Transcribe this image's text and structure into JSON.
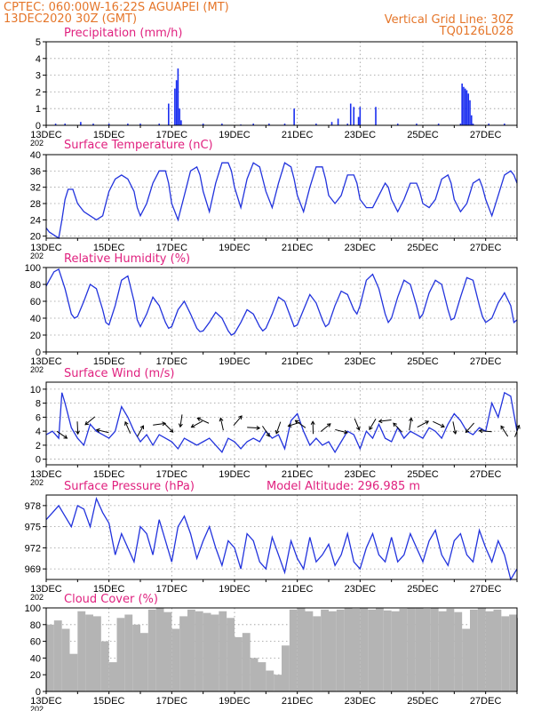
{
  "header": {
    "line1_left": "CPTEC:   060:00W-16:22S   AGUAPEI (MT)",
    "line2_left": "13DEC2020 30Z (GMT)",
    "line1_right": "Vertical Grid Line: 30Z",
    "line2_right": "TQ0126L028"
  },
  "x_axis": {
    "labels": [
      "13DEC",
      "15DEC",
      "17DEC",
      "19DEC",
      "21DEC",
      "23DEC",
      "25DEC",
      "27DEC"
    ],
    "year_label": "202",
    "day_start": 13,
    "day_end": 28
  },
  "panels": [
    {
      "id": "precip",
      "title": "Precipitation (mm/h)",
      "yticks": [
        "0",
        "1",
        "2",
        "3",
        "4",
        "5"
      ]
    },
    {
      "id": "temp",
      "title": "Surface Temperature (nC)",
      "yticks": [
        "20",
        "24",
        "28",
        "32",
        "36",
        "40"
      ]
    },
    {
      "id": "rh",
      "title": "Relative Humidity (%)",
      "yticks": [
        "0",
        "20",
        "40",
        "60",
        "80",
        "100"
      ]
    },
    {
      "id": "wind",
      "title": "Surface Wind (m/s)",
      "yticks": [
        "0",
        "2",
        "4",
        "6",
        "8",
        "10"
      ]
    },
    {
      "id": "pres",
      "title": "Surface Pressure (hPa)",
      "extra": "Model Altitude: 296.985 m",
      "yticks": [
        "969",
        "972",
        "975",
        "978"
      ]
    },
    {
      "id": "cloud",
      "title": "Cloud Cover (%)",
      "yticks": [
        "0",
        "20",
        "40",
        "60",
        "80",
        "100"
      ]
    }
  ],
  "colors": {
    "header": "#e5762a",
    "title": "#e0217f",
    "line": "#2233dd",
    "bar": "#1a2ef0",
    "cloud": "#b4b4b4"
  },
  "chart_data": [
    {
      "type": "bar",
      "title": "Precipitation (mm/h)",
      "ylim": [
        0,
        5
      ],
      "x": [
        13.3,
        13.6,
        14.1,
        14.5,
        15.0,
        15.6,
        16.0,
        16.6,
        16.9,
        17.1,
        17.15,
        17.2,
        17.25,
        17.3,
        18.0,
        18.6,
        19.2,
        19.6,
        20.1,
        20.6,
        20.9,
        21.6,
        22.1,
        22.3,
        22.6,
        22.7,
        22.8,
        22.95,
        23.0,
        23.5,
        24.2,
        24.8,
        25.5,
        26.2,
        26.25,
        26.3,
        26.35,
        26.4,
        26.45,
        26.5,
        26.55,
        26.6,
        27.1,
        27.6
      ],
      "y": [
        0.1,
        0.1,
        0.2,
        0.1,
        0.1,
        0.1,
        0.1,
        0.1,
        1.3,
        2.2,
        2.7,
        3.4,
        1.0,
        0.3,
        0.1,
        0.1,
        0.05,
        0.1,
        0.1,
        0.1,
        1.0,
        0.1,
        0.2,
        0.4,
        0.1,
        1.3,
        1.1,
        0.5,
        1.1,
        1.1,
        0.1,
        0.1,
        0.1,
        0.1,
        2.5,
        2.3,
        2.2,
        2.1,
        1.9,
        1.5,
        0.6,
        0.1,
        0.1,
        0.1
      ]
    },
    {
      "type": "line",
      "title": "Surface Temperature (nC)",
      "ylim": [
        20,
        40
      ],
      "x": [
        13.0,
        13.1,
        13.2,
        13.3,
        13.4,
        13.5,
        13.6,
        13.7,
        13.85,
        14.0,
        14.2,
        14.4,
        14.6,
        14.8,
        14.9,
        15.0,
        15.2,
        15.4,
        15.6,
        15.8,
        15.9,
        16.0,
        16.2,
        16.4,
        16.6,
        16.8,
        16.9,
        17.0,
        17.2,
        17.4,
        17.6,
        17.8,
        17.9,
        18.0,
        18.2,
        18.4,
        18.6,
        18.8,
        18.9,
        19.0,
        19.2,
        19.4,
        19.6,
        19.8,
        19.9,
        20.0,
        20.2,
        20.4,
        20.6,
        20.8,
        20.9,
        21.0,
        21.2,
        21.4,
        21.6,
        21.8,
        21.9,
        22.0,
        22.2,
        22.4,
        22.6,
        22.8,
        22.9,
        23.0,
        23.2,
        23.4,
        23.6,
        23.8,
        23.9,
        24.0,
        24.2,
        24.4,
        24.6,
        24.8,
        24.9,
        25.0,
        25.2,
        25.4,
        25.6,
        25.8,
        25.9,
        26.0,
        26.2,
        26.4,
        26.6,
        26.8,
        26.9,
        27.0,
        27.2,
        27.4,
        27.6,
        27.8,
        27.9,
        28.0
      ],
      "y": [
        22,
        21,
        20.5,
        20,
        19.5,
        24,
        29,
        31.5,
        31.5,
        28,
        26,
        25,
        24,
        25,
        28,
        31,
        34,
        35,
        34,
        31,
        27,
        25,
        28,
        33,
        36,
        36,
        33,
        28,
        24,
        30,
        36,
        37,
        35,
        31,
        26,
        33,
        38,
        38,
        36,
        32,
        27,
        34,
        38,
        37,
        34,
        31,
        27,
        33,
        38,
        37,
        34,
        30,
        26,
        32,
        37,
        37,
        34,
        30,
        28,
        30,
        35,
        35,
        33,
        29,
        27,
        27,
        30,
        33,
        32,
        29,
        26,
        29,
        33,
        33,
        31,
        28,
        27,
        29,
        34,
        35,
        33,
        29,
        26,
        28,
        33,
        34,
        32,
        29,
        25,
        30,
        35,
        36,
        35,
        33
      ]
    },
    {
      "type": "line",
      "title": "Relative Humidity (%)",
      "ylim": [
        0,
        100
      ],
      "x": [
        13.0,
        13.1,
        13.25,
        13.4,
        13.6,
        13.8,
        13.9,
        14.0,
        14.2,
        14.4,
        14.6,
        14.8,
        14.9,
        15.0,
        15.2,
        15.4,
        15.6,
        15.8,
        15.9,
        16.0,
        16.2,
        16.4,
        16.6,
        16.8,
        16.9,
        17.0,
        17.2,
        17.4,
        17.6,
        17.8,
        17.9,
        18.0,
        18.2,
        18.4,
        18.6,
        18.8,
        18.9,
        19.0,
        19.2,
        19.4,
        19.6,
        19.8,
        19.9,
        20.0,
        20.2,
        20.4,
        20.6,
        20.8,
        20.9,
        21.0,
        21.2,
        21.4,
        21.6,
        21.8,
        21.9,
        22.0,
        22.2,
        22.4,
        22.6,
        22.8,
        22.9,
        23.0,
        23.2,
        23.4,
        23.6,
        23.8,
        23.9,
        24.0,
        24.2,
        24.4,
        24.6,
        24.8,
        24.9,
        25.0,
        25.2,
        25.4,
        25.6,
        25.8,
        25.9,
        26.0,
        26.2,
        26.4,
        26.6,
        26.8,
        26.9,
        27.0,
        27.2,
        27.4,
        27.6,
        27.8,
        27.9,
        28.0
      ],
      "y": [
        78,
        85,
        95,
        98,
        75,
        45,
        40,
        42,
        60,
        80,
        75,
        50,
        35,
        32,
        55,
        85,
        90,
        60,
        38,
        30,
        45,
        65,
        55,
        35,
        28,
        30,
        50,
        60,
        45,
        28,
        24,
        25,
        35,
        47,
        40,
        25,
        20,
        22,
        35,
        50,
        45,
        30,
        25,
        28,
        45,
        65,
        60,
        40,
        30,
        32,
        50,
        68,
        58,
        38,
        30,
        33,
        55,
        72,
        68,
        50,
        45,
        55,
        85,
        92,
        75,
        45,
        35,
        40,
        65,
        85,
        80,
        55,
        40,
        45,
        70,
        85,
        80,
        50,
        38,
        40,
        65,
        88,
        85,
        55,
        42,
        35,
        40,
        58,
        70,
        55,
        35,
        38
      ]
    },
    {
      "type": "line",
      "title": "Surface Wind (m/s)",
      "ylim": [
        0,
        10
      ],
      "x": [
        13.0,
        13.2,
        13.4,
        13.5,
        13.6,
        13.8,
        14.0,
        14.2,
        14.4,
        14.6,
        14.8,
        15.0,
        15.2,
        15.4,
        15.6,
        15.8,
        16.0,
        16.2,
        16.4,
        16.6,
        16.8,
        17.0,
        17.2,
        17.4,
        17.6,
        17.8,
        18.0,
        18.2,
        18.4,
        18.6,
        18.8,
        19.0,
        19.2,
        19.4,
        19.6,
        19.8,
        20.0,
        20.2,
        20.4,
        20.6,
        20.8,
        21.0,
        21.2,
        21.4,
        21.6,
        21.8,
        22.0,
        22.2,
        22.4,
        22.6,
        22.8,
        23.0,
        23.2,
        23.4,
        23.6,
        23.8,
        24.0,
        24.2,
        24.4,
        24.6,
        24.8,
        25.0,
        25.2,
        25.4,
        25.6,
        25.8,
        26.0,
        26.2,
        26.4,
        26.6,
        26.8,
        27.0,
        27.2,
        27.4,
        27.6,
        27.8,
        28.0
      ],
      "y": [
        3.5,
        4.0,
        3.0,
        9.5,
        8.0,
        4.5,
        3.0,
        2.0,
        5.0,
        4.0,
        3.5,
        3.0,
        4.0,
        7.5,
        6.0,
        4.0,
        2.5,
        3.5,
        2.0,
        3.5,
        3.0,
        2.5,
        1.5,
        3.0,
        2.5,
        2.0,
        2.5,
        3.0,
        2.0,
        1.0,
        3.0,
        2.5,
        1.5,
        2.5,
        3.0,
        2.5,
        4.0,
        3.0,
        3.5,
        1.5,
        5.5,
        6.5,
        4.0,
        2.0,
        3.0,
        2.0,
        2.5,
        1.0,
        2.5,
        4.0,
        3.5,
        1.5,
        4.0,
        3.0,
        5.0,
        3.0,
        2.5,
        4.5,
        3.0,
        4.0,
        3.5,
        3.0,
        4.5,
        4.0,
        3.0,
        5.0,
        6.5,
        5.5,
        4.0,
        3.5,
        4.5,
        4.0,
        8.0,
        6.0,
        9.5,
        9.0,
        4.0
      ]
    },
    {
      "type": "line",
      "title": "Surface Pressure (hPa)",
      "ylim": [
        967.5,
        979.5
      ],
      "x": [
        13.0,
        13.2,
        13.4,
        13.6,
        13.8,
        14.0,
        14.2,
        14.4,
        14.6,
        14.8,
        15.0,
        15.2,
        15.4,
        15.6,
        15.8,
        16.0,
        16.2,
        16.4,
        16.6,
        16.8,
        17.0,
        17.2,
        17.4,
        17.6,
        17.8,
        18.0,
        18.2,
        18.4,
        18.6,
        18.8,
        19.0,
        19.2,
        19.4,
        19.6,
        19.8,
        20.0,
        20.2,
        20.4,
        20.6,
        20.8,
        21.0,
        21.2,
        21.4,
        21.6,
        21.8,
        22.0,
        22.2,
        22.4,
        22.6,
        22.8,
        23.0,
        23.2,
        23.4,
        23.6,
        23.8,
        24.0,
        24.2,
        24.4,
        24.6,
        24.8,
        25.0,
        25.2,
        25.4,
        25.6,
        25.8,
        26.0,
        26.2,
        26.4,
        26.6,
        26.8,
        27.0,
        27.2,
        27.4,
        27.6,
        27.8,
        28.0
      ],
      "y": [
        976,
        977,
        978,
        976.5,
        975,
        978,
        977.5,
        975,
        979,
        977,
        975.5,
        971,
        974,
        972,
        970,
        975,
        974,
        971,
        976,
        973,
        970,
        975,
        976.5,
        974,
        970.5,
        973,
        975,
        972,
        969.5,
        973,
        972,
        969,
        974,
        973,
        970,
        969,
        973.5,
        971,
        968.5,
        973,
        970.5,
        969,
        973.5,
        970,
        971,
        972.5,
        969.5,
        971,
        974,
        970,
        969,
        972,
        974,
        971,
        970,
        973.5,
        970,
        971,
        974,
        972,
        970,
        973,
        974.5,
        971,
        969.5,
        973,
        974,
        971,
        970,
        974.5,
        972,
        970,
        973,
        971,
        967.5,
        969
      ]
    },
    {
      "type": "bar",
      "title": "Cloud Cover (%)",
      "ylim": [
        0,
        100
      ],
      "x": [
        13.0,
        13.25,
        13.5,
        13.75,
        14.0,
        14.25,
        14.5,
        14.75,
        15.0,
        15.25,
        15.5,
        15.75,
        16.0,
        16.25,
        16.5,
        16.75,
        17.0,
        17.25,
        17.5,
        17.75,
        18.0,
        18.25,
        18.5,
        18.75,
        19.0,
        19.25,
        19.5,
        19.75,
        20.0,
        20.25,
        20.5,
        20.75,
        21.0,
        21.25,
        21.5,
        21.75,
        22.0,
        22.25,
        22.5,
        22.75,
        23.0,
        23.25,
        23.5,
        23.75,
        24.0,
        24.25,
        24.5,
        24.75,
        25.0,
        25.25,
        25.5,
        25.75,
        26.0,
        26.25,
        26.5,
        26.75,
        27.0,
        27.25,
        27.5,
        27.75,
        28.0
      ],
      "y": [
        80,
        85,
        75,
        45,
        96,
        92,
        90,
        60,
        35,
        88,
        92,
        80,
        70,
        98,
        100,
        95,
        75,
        90,
        98,
        96,
        94,
        92,
        96,
        88,
        65,
        70,
        40,
        35,
        25,
        20,
        55,
        98,
        100,
        96,
        90,
        98,
        96,
        98,
        100,
        99,
        100,
        98,
        100,
        97,
        96,
        99,
        100,
        100,
        99,
        100,
        96,
        99,
        95,
        75,
        98,
        100,
        96,
        98,
        90,
        92,
        88
      ]
    },
    {
      "type": "scatter",
      "title": "Surface Wind (m/s)",
      "x": [
        13.5,
        14.0,
        14.4,
        14.8,
        15.6,
        16.0,
        16.6,
        16.9,
        17.3,
        17.8,
        18.0,
        18.6,
        19.1,
        19.6,
        20.0,
        20.4,
        20.9,
        21.1,
        21.5,
        21.9,
        22.4,
        22.9,
        23.4,
        23.8,
        24.2,
        24.6,
        25.0,
        25.5,
        26.0,
        26.5,
        27.0,
        27.6,
        28.0
      ],
      "y": [
        3.5,
        4.5,
        5.5,
        4.0,
        4.5,
        4.0,
        5.0,
        4.5,
        5.5,
        5.0,
        5.5,
        5.0,
        5.5,
        4.5,
        4.0,
        4.5,
        5.0,
        5.0,
        4.5,
        4.5,
        4.0,
        5.0,
        5.0,
        5.5,
        4.5,
        5.0,
        5.0,
        5.0,
        4.5,
        4.5,
        4.0,
        4.0,
        4.0
      ]
    }
  ]
}
